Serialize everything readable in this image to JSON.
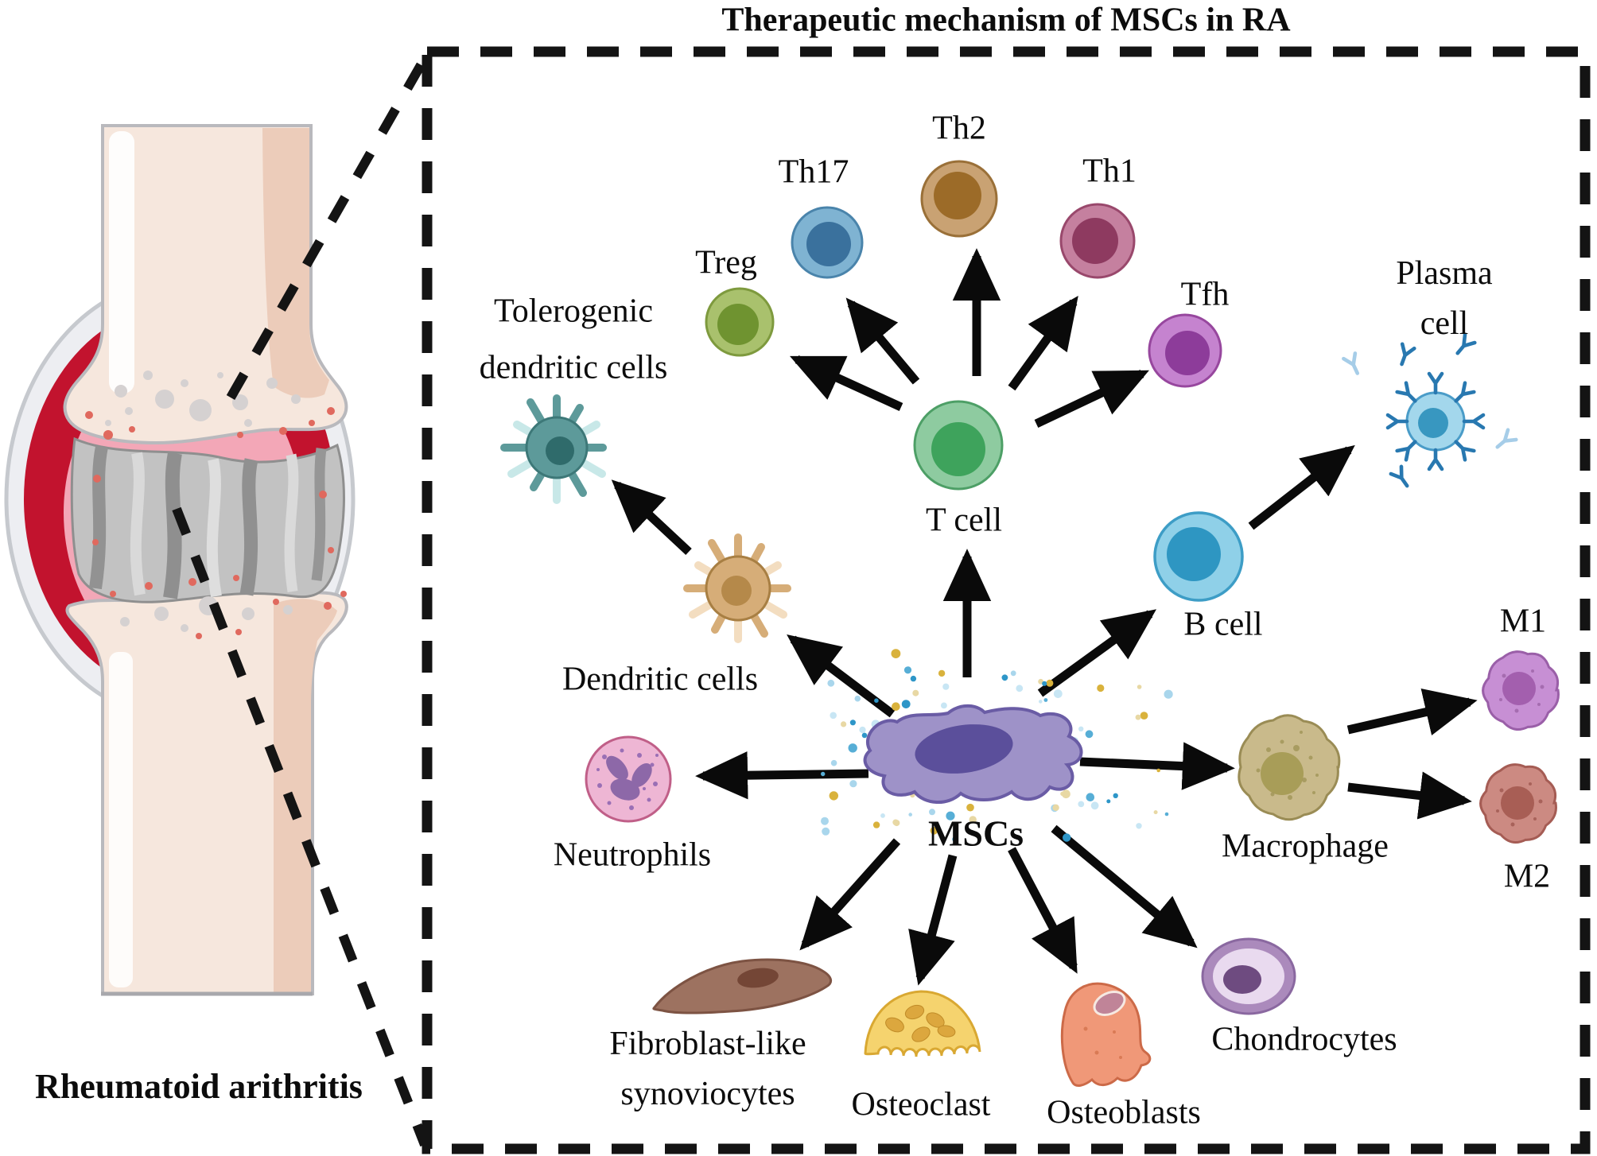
{
  "title": "Therapeutic mechanism of MSCs in RA",
  "joint_panel": {
    "caption": "Rheumatoid arithritis"
  },
  "labels": {
    "treg": "Treg",
    "th17": "Th17",
    "th2": "Th2",
    "th1": "Th1",
    "tfh": "Tfh",
    "t_cell": "T cell",
    "plasma_cell": "Plasma cell",
    "b_cell": "B cell",
    "tolerogenic": "Tolerogenic\ndendritic cells",
    "dendritic": "Dendritic cells",
    "neutrophils": "Neutrophils",
    "mscs": "MSCs",
    "macrophage": "Macrophage",
    "m1": "M1",
    "m2": "M2",
    "fibroblast": "Fibroblast-like\nsynoviocytes",
    "osteoclast": "Osteoclast",
    "osteoblasts": "Osteoblasts",
    "chondrocytes": "Chondrocytes"
  },
  "colors": {
    "arrow": "#0a0a0a",
    "border": "#141414",
    "treg_body": "#a9c16d",
    "treg_nucleus": "#6f9330",
    "th17_body": "#7fb3d2",
    "th17_nucleus": "#3a719d",
    "th2_body": "#c9a273",
    "th2_nucleus": "#9c6b28",
    "th1_body": "#c5809f",
    "th1_nucleus": "#8e3a60",
    "tfh_body": "#c583cf",
    "tfh_nucleus": "#8d3c9a",
    "tcell_body": "#8ecba0",
    "tcell_nucleus": "#3ea35c",
    "bcell_body": "#8fd0e8",
    "bcell_nucleus": "#2e96c2",
    "plasma_body": "#a3d7ec",
    "plasma_nucleus": "#3897c0",
    "antibody": "#2878b0",
    "tol_dc_body": "#5d9a9a",
    "tol_dc_nucleus": "#2f6b6b",
    "tol_dc_spike": "#c8e8e8",
    "dc_body": "#d6ad78",
    "dc_nucleus": "#b5894a",
    "dc_spike": "#f3ddc0",
    "neutrophil_body": "#eeb6d4",
    "neutrophil_nucleus": "#8d68a8",
    "mscs_body": "#9e92c8",
    "mscs_nucleus": "#5b4f9b",
    "macrophage_body": "#c9ba8b",
    "macrophage_nucleus": "#a89d58",
    "m1_body": "#c78fd4",
    "m1_nucleus": "#a35fae",
    "m2_body": "#cc8a82",
    "m2_nucleus": "#a85e55",
    "fibroblast_body": "#9d7260",
    "fibroblast_nucleus": "#74ـ",
    "fibroblast_nuc": "#744636",
    "osteoclast_body": "#f5d36e",
    "osteoclast_nucleus": "#dca73e",
    "osteoblast_body": "#f09878",
    "osteoblast_nucleus": "#c08498",
    "chondrocyte_outer": "#ab8abc",
    "chondrocyte_inner": "#e9daef",
    "chondrocyte_nucleus": "#6e4b80",
    "bone": "#f6e7dd",
    "synovium_red": "#c2132e",
    "synovium_pink": "#f3a7b7",
    "cartilage": "#c2c2c2"
  }
}
